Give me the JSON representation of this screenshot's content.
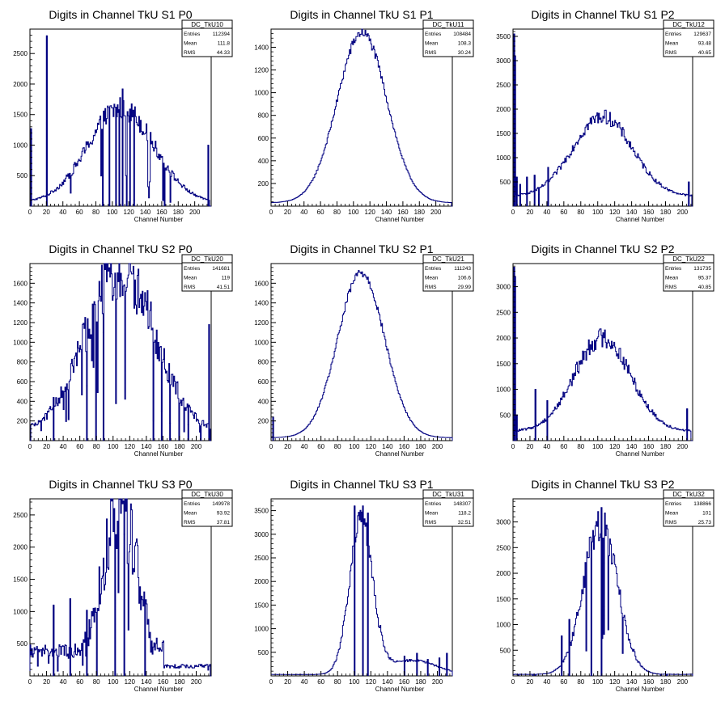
{
  "chart_data": [
    {
      "type": "histogram",
      "title": "Digits in Channel TkU S1 P0",
      "xlabel": "Channel Number",
      "xlim": [
        0,
        220
      ],
      "ylim": [
        0,
        2900
      ],
      "xticks": [
        0,
        20,
        40,
        60,
        80,
        100,
        120,
        140,
        160,
        180,
        200
      ],
      "yticks": [
        500,
        1000,
        1500,
        2000,
        2500
      ],
      "color": "#000080",
      "stats": {
        "name": "DC_TkU10",
        "entries": "112394",
        "mean": "111.8",
        "rms": "44.33"
      },
      "profile": {
        "center": 110,
        "sigma": 40,
        "peak": 1550,
        "pedestal": 60,
        "cutoff_low": 2,
        "cutoff_high": 217
      },
      "spikes": [
        {
          "x": 1,
          "y": 1270
        },
        {
          "x": 20,
          "y": 2790
        },
        {
          "x": 88,
          "y": 60
        },
        {
          "x": 96,
          "y": 20
        },
        {
          "x": 104,
          "y": 1620
        },
        {
          "x": 108,
          "y": 1580
        },
        {
          "x": 112,
          "y": 1920
        },
        {
          "x": 117,
          "y": 80
        },
        {
          "x": 121,
          "y": 1590
        },
        {
          "x": 126,
          "y": 100
        },
        {
          "x": 163,
          "y": 100
        },
        {
          "x": 216,
          "y": 1000
        }
      ],
      "noise": 0.12
    },
    {
      "type": "histogram",
      "title": "Digits in Channel TkU S1 P1",
      "xlabel": "Channel Number",
      "xlim": [
        0,
        220
      ],
      "ylim": [
        0,
        1560
      ],
      "xticks": [
        0,
        20,
        40,
        60,
        80,
        100,
        120,
        140,
        160,
        180,
        200
      ],
      "yticks": [
        200,
        400,
        600,
        800,
        1000,
        1200,
        1400
      ],
      "color": "#000080",
      "stats": {
        "name": "DC_TkU11",
        "entries": "108484",
        "mean": "108.3",
        "rms": "30.24"
      },
      "profile": {
        "center": 110,
        "sigma": 30,
        "peak": 1500,
        "pedestal": 30,
        "cutoff_low": 0,
        "cutoff_high": 218
      },
      "spikes": [],
      "noise": 0.03
    },
    {
      "type": "histogram",
      "title": "Digits in Channel TkU S1 P2",
      "xlabel": "Channel Number",
      "xlim": [
        0,
        212
      ],
      "ylim": [
        0,
        3650
      ],
      "xticks": [
        0,
        20,
        40,
        60,
        80,
        100,
        120,
        140,
        160,
        180,
        200
      ],
      "yticks": [
        500,
        1000,
        1500,
        2000,
        2500,
        3000,
        3500
      ],
      "color": "#000080",
      "stats": {
        "name": "DC_TkU12",
        "entries": "129637",
        "mean": "93.48",
        "rms": "40.65"
      },
      "profile": {
        "center": 105,
        "sigma": 35,
        "peak": 1650,
        "pedestal": 200,
        "cutoff_low": 2,
        "cutoff_high": 210
      },
      "spikes": [
        {
          "x": 1,
          "y": 3550
        },
        {
          "x": 2,
          "y": 3100
        },
        {
          "x": 4,
          "y": 600
        },
        {
          "x": 8,
          "y": 450
        },
        {
          "x": 16,
          "y": 600
        },
        {
          "x": 25,
          "y": 640
        },
        {
          "x": 30,
          "y": 250
        },
        {
          "x": 41,
          "y": 800
        },
        {
          "x": 207,
          "y": 500
        }
      ],
      "noise": 0.08
    },
    {
      "type": "histogram",
      "title": "Digits in Channel TkU S2 P0",
      "xlabel": "Channel Number",
      "xlim": [
        0,
        218
      ],
      "ylim": [
        0,
        1800
      ],
      "xticks": [
        0,
        20,
        40,
        60,
        80,
        100,
        120,
        140,
        160,
        180,
        200
      ],
      "yticks": [
        200,
        400,
        600,
        800,
        1000,
        1200,
        1400,
        1600
      ],
      "color": "#000080",
      "stats": {
        "name": "DC_TkU20",
        "entries": "141681",
        "mean": "119",
        "rms": "41.51"
      },
      "profile": {
        "center": 108,
        "sigma": 42,
        "peak": 1650,
        "pedestal": 80,
        "cutoff_low": 1,
        "cutoff_high": 216
      },
      "spikes": [
        {
          "x": 28,
          "y": 440
        },
        {
          "x": 68,
          "y": 560
        },
        {
          "x": 79,
          "y": 20
        },
        {
          "x": 88,
          "y": 1100
        },
        {
          "x": 148,
          "y": 200
        },
        {
          "x": 158,
          "y": 300
        },
        {
          "x": 168,
          "y": 180
        },
        {
          "x": 179,
          "y": 200
        },
        {
          "x": 190,
          "y": 160
        },
        {
          "x": 205,
          "y": 150
        },
        {
          "x": 215,
          "y": 1180
        }
      ],
      "noise": 0.18
    },
    {
      "type": "histogram",
      "title": "Digits in Channel TkU S2 P1",
      "xlabel": "Channel Number",
      "xlim": [
        0,
        218
      ],
      "ylim": [
        0,
        1800
      ],
      "xticks": [
        0,
        20,
        40,
        60,
        80,
        100,
        120,
        140,
        160,
        180,
        200
      ],
      "yticks": [
        200,
        400,
        600,
        800,
        1000,
        1200,
        1400,
        1600
      ],
      "color": "#000080",
      "stats": {
        "name": "DC_TkU21",
        "entries": "111243",
        "mean": "106.6",
        "rms": "29.99"
      },
      "profile": {
        "center": 108,
        "sigma": 28,
        "peak": 1680,
        "pedestal": 30,
        "cutoff_low": 0,
        "cutoff_high": 218
      },
      "spikes": [
        {
          "x": 2,
          "y": 240
        }
      ],
      "noise": 0.03
    },
    {
      "type": "histogram",
      "title": "Digits in Channel TkU S2 P2",
      "xlabel": "Channel Number",
      "xlim": [
        0,
        212
      ],
      "ylim": [
        0,
        3450
      ],
      "xticks": [
        0,
        20,
        40,
        60,
        80,
        100,
        120,
        140,
        160,
        180,
        200
      ],
      "yticks": [
        500,
        1000,
        1500,
        2000,
        2500,
        3000
      ],
      "color": "#000080",
      "stats": {
        "name": "DC_TkU22",
        "entries": "131735",
        "mean": "95.37",
        "rms": "40.85"
      },
      "profile": {
        "center": 105,
        "sigma": 33,
        "peak": 1830,
        "pedestal": 180,
        "cutoff_low": 2,
        "cutoff_high": 209
      },
      "spikes": [
        {
          "x": 1,
          "y": 3380
        },
        {
          "x": 2,
          "y": 3200
        },
        {
          "x": 4,
          "y": 500
        },
        {
          "x": 26,
          "y": 1000
        },
        {
          "x": 40,
          "y": 780
        },
        {
          "x": 205,
          "y": 620
        }
      ],
      "noise": 0.1
    },
    {
      "type": "histogram",
      "title": "Digits in Channel TkU S3 P0",
      "xlabel": "Channel Number",
      "xlim": [
        0,
        218
      ],
      "ylim": [
        0,
        2750
      ],
      "xticks": [
        0,
        20,
        40,
        60,
        80,
        100,
        120,
        140,
        160,
        180,
        200
      ],
      "yticks": [
        500,
        1000,
        1500,
        2000,
        2500
      ],
      "color": "#000080",
      "stats": {
        "name": "DC_TkU30",
        "entries": "149978",
        "mean": "93.92",
        "rms": "37.81"
      },
      "profile": {
        "center": 108,
        "sigma": 18,
        "peak": 2450,
        "pedestal": 380,
        "cutoff_low": 0,
        "cutoff_high": 216
      },
      "spikes": [
        {
          "x": 28,
          "y": 1100
        },
        {
          "x": 48,
          "y": 1200
        },
        {
          "x": 68,
          "y": 1020
        },
        {
          "x": 80,
          "y": 30
        },
        {
          "x": 102,
          "y": 30
        },
        {
          "x": 113,
          "y": 2200
        },
        {
          "x": 138,
          "y": 30
        }
      ],
      "noise": 0.3,
      "tail_fall": 160
    },
    {
      "type": "histogram",
      "title": "Digits in Channel TkU S3 P1",
      "xlabel": "Channel Number",
      "xlim": [
        0,
        218
      ],
      "ylim": [
        0,
        3750
      ],
      "xticks": [
        0,
        20,
        40,
        60,
        80,
        100,
        120,
        140,
        160,
        180,
        200
      ],
      "yticks": [
        500,
        1000,
        1500,
        2000,
        2500,
        3000,
        3500
      ],
      "color": "#000080",
      "stats": {
        "name": "DC_TkU31",
        "entries": "148307",
        "mean": "118.2",
        "rms": "32.51"
      },
      "profile": {
        "center": 108,
        "sigma": 14,
        "peak": 3300,
        "pedestal": 30,
        "cutoff_low": 0,
        "cutoff_high": 218
      },
      "spikes": [
        {
          "x": 100,
          "y": 3600
        },
        {
          "x": 110,
          "y": 3600
        },
        {
          "x": 116,
          "y": 3450
        },
        {
          "x": 160,
          "y": 420
        },
        {
          "x": 175,
          "y": 480
        },
        {
          "x": 188,
          "y": 350
        },
        {
          "x": 202,
          "y": 380
        },
        {
          "x": 211,
          "y": 480
        }
      ],
      "noise": 0.08,
      "shoulder": {
        "from": 130,
        "to": 218,
        "level": 300
      }
    },
    {
      "type": "histogram",
      "title": "Digits in Channel TkU S3 P2",
      "xlabel": "Channel Number",
      "xlim": [
        0,
        212
      ],
      "ylim": [
        0,
        3450
      ],
      "xticks": [
        0,
        20,
        40,
        60,
        80,
        100,
        120,
        140,
        160,
        180,
        200
      ],
      "yticks": [
        500,
        1000,
        1500,
        2000,
        2500,
        3000
      ],
      "color": "#000080",
      "stats": {
        "name": "DC_TkU32",
        "entries": "138866",
        "mean": "101",
        "rms": "25.73"
      },
      "profile": {
        "center": 103,
        "sigma": 20,
        "peak": 2950,
        "pedestal": 30,
        "cutoff_low": 0,
        "cutoff_high": 212
      },
      "spikes": [
        {
          "x": 104,
          "y": 3280
        },
        {
          "x": 92,
          "y": 2450
        },
        {
          "x": 57,
          "y": 780
        },
        {
          "x": 66,
          "y": 1100
        }
      ],
      "noise": 0.12
    }
  ],
  "stats_labels": {
    "entries": "Entries",
    "mean": "Mean",
    "rms": "RMS"
  }
}
